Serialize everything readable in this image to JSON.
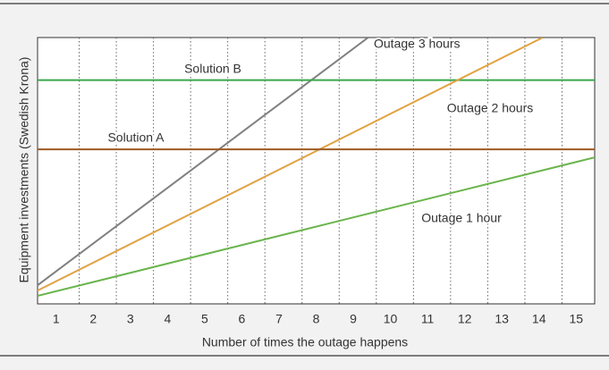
{
  "chart_data": {
    "type": "line",
    "x_label": "Number of times the outage happens",
    "y_label": "Equipment investments (Swedish Krona)",
    "xlim": [
      0.5,
      15.5
    ],
    "xticks": [
      1,
      2,
      3,
      4,
      5,
      6,
      7,
      8,
      9,
      10,
      11,
      12,
      13,
      14,
      15
    ],
    "ylim": [
      0,
      100
    ],
    "grid": true,
    "series": [
      {
        "name": "Outage 3 hours",
        "color": "#808080",
        "x": [
          0.5,
          9.4
        ],
        "values": [
          7,
          100
        ]
      },
      {
        "name": "Solution B",
        "color": "#3aa84a",
        "x": [
          0.5,
          15.5
        ],
        "values": [
          84,
          84
        ]
      },
      {
        "name": "Outage 2 hours",
        "color": "#e2a244",
        "x": [
          0.5,
          14.1
        ],
        "values": [
          5,
          100
        ]
      },
      {
        "name": "Solution A",
        "color": "#9e5a24",
        "x": [
          0.5,
          15.5
        ],
        "values": [
          58,
          58
        ]
      },
      {
        "name": "Outage 1 hour",
        "color": "#6ab44c",
        "x": [
          0.5,
          15.5
        ],
        "values": [
          3,
          55
        ]
      }
    ]
  }
}
